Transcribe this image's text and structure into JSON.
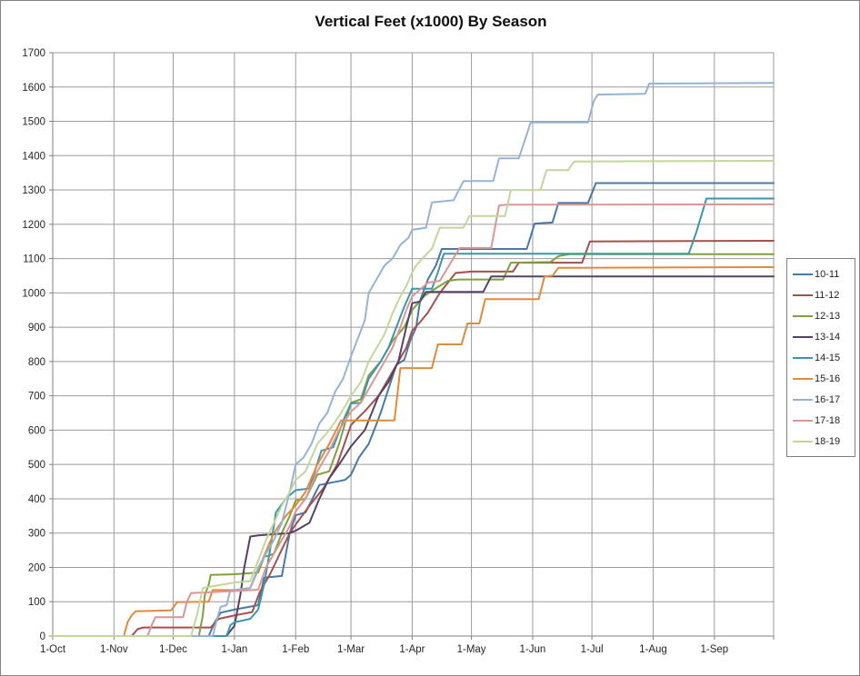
{
  "chart_data": {
    "type": "line",
    "title": "Vertical Feet (x1000) By Season",
    "xlabel": "",
    "ylabel": "",
    "grid": "both",
    "legend_position": "right",
    "grid_color": "#9b9b9b",
    "axis_color": "#7f7f7f",
    "border_color": "#858585",
    "y_axis": {
      "min": 0,
      "max": 1700,
      "step": 100
    },
    "x_axis": {
      "labels": [
        "1-Oct",
        "1-Nov",
        "1-Dec",
        "1-Jan",
        "1-Feb",
        "1-Mar",
        "1-Apr",
        "1-May",
        "1-Jun",
        "1-Jul",
        "1-Aug",
        "1-Sep"
      ],
      "tick_day_offsets": [
        0,
        31,
        61,
        92,
        123,
        151,
        182,
        212,
        243,
        273,
        304,
        335
      ],
      "total_days": 365
    },
    "series": [
      {
        "name": "10-11",
        "color": "#4878A8",
        "points": [
          [
            0,
            0
          ],
          [
            79,
            0
          ],
          [
            82,
            40
          ],
          [
            85,
            68
          ],
          [
            92,
            77
          ],
          [
            104,
            90
          ],
          [
            107,
            170
          ],
          [
            116,
            175
          ],
          [
            120,
            300
          ],
          [
            123,
            352
          ],
          [
            128,
            360
          ],
          [
            135,
            440
          ],
          [
            148,
            455
          ],
          [
            151,
            470
          ],
          [
            155,
            520
          ],
          [
            160,
            560
          ],
          [
            163,
            604
          ],
          [
            166,
            650
          ],
          [
            170,
            720
          ],
          [
            174,
            790
          ],
          [
            178,
            805
          ],
          [
            181,
            860
          ],
          [
            184,
            900
          ],
          [
            186,
            977
          ],
          [
            190,
            1040
          ],
          [
            194,
            1080
          ],
          [
            197,
            1128
          ],
          [
            240,
            1128
          ],
          [
            244,
            1202
          ],
          [
            253,
            1205
          ],
          [
            256,
            1262
          ],
          [
            271,
            1262
          ],
          [
            275,
            1320
          ],
          [
            365,
            1320
          ]
        ]
      },
      {
        "name": "11-12",
        "color": "#A4504C",
        "points": [
          [
            0,
            0
          ],
          [
            40,
            0
          ],
          [
            43,
            20
          ],
          [
            46,
            25
          ],
          [
            80,
            25
          ],
          [
            84,
            50
          ],
          [
            92,
            60
          ],
          [
            101,
            70
          ],
          [
            105,
            130
          ],
          [
            110,
            180
          ],
          [
            115,
            240
          ],
          [
            120,
            300
          ],
          [
            123,
            325
          ],
          [
            130,
            380
          ],
          [
            137,
            430
          ],
          [
            144,
            500
          ],
          [
            151,
            615
          ],
          [
            158,
            655
          ],
          [
            165,
            700
          ],
          [
            172,
            770
          ],
          [
            179,
            840
          ],
          [
            182,
            890
          ],
          [
            186,
            915
          ],
          [
            190,
            943
          ],
          [
            196,
            1000
          ],
          [
            204,
            1058
          ],
          [
            212,
            1062
          ],
          [
            233,
            1062
          ],
          [
            236,
            1088
          ],
          [
            268,
            1088
          ],
          [
            272,
            1150
          ],
          [
            365,
            1152
          ]
        ]
      },
      {
        "name": "12-13",
        "color": "#7FA03F",
        "points": [
          [
            0,
            0
          ],
          [
            74,
            0
          ],
          [
            76,
            60
          ],
          [
            77,
            120
          ],
          [
            79,
            150
          ],
          [
            80,
            178
          ],
          [
            92,
            180
          ],
          [
            104,
            185
          ],
          [
            107,
            230
          ],
          [
            112,
            240
          ],
          [
            116,
            300
          ],
          [
            120,
            350
          ],
          [
            123,
            395
          ],
          [
            128,
            400
          ],
          [
            134,
            470
          ],
          [
            140,
            480
          ],
          [
            145,
            560
          ],
          [
            151,
            680
          ],
          [
            156,
            690
          ],
          [
            160,
            760
          ],
          [
            166,
            800
          ],
          [
            172,
            860
          ],
          [
            178,
            900
          ],
          [
            182,
            950
          ],
          [
            188,
            990
          ],
          [
            193,
            1010
          ],
          [
            200,
            1035
          ],
          [
            205,
            1039
          ],
          [
            228,
            1039
          ],
          [
            232,
            1088
          ],
          [
            252,
            1090
          ],
          [
            256,
            1107
          ],
          [
            262,
            1113
          ],
          [
            365,
            1113
          ]
        ]
      },
      {
        "name": "13-14",
        "color": "#564266",
        "points": [
          [
            0,
            0
          ],
          [
            88,
            0
          ],
          [
            90,
            15
          ],
          [
            92,
            30
          ],
          [
            95,
            120
          ],
          [
            97,
            200
          ],
          [
            100,
            290
          ],
          [
            104,
            293
          ],
          [
            120,
            300
          ],
          [
            123,
            307
          ],
          [
            130,
            330
          ],
          [
            135,
            400
          ],
          [
            140,
            460
          ],
          [
            145,
            500
          ],
          [
            151,
            553
          ],
          [
            158,
            600
          ],
          [
            165,
            700
          ],
          [
            170,
            740
          ],
          [
            175,
            800
          ],
          [
            179,
            900
          ],
          [
            182,
            970
          ],
          [
            186,
            975
          ],
          [
            189,
            1003
          ],
          [
            218,
            1003
          ],
          [
            222,
            1048
          ],
          [
            365,
            1048
          ]
        ]
      },
      {
        "name": "14-15",
        "color": "#3D95AB",
        "points": [
          [
            0,
            0
          ],
          [
            88,
            0
          ],
          [
            90,
            32
          ],
          [
            92,
            40
          ],
          [
            100,
            50
          ],
          [
            104,
            77
          ],
          [
            107,
            150
          ],
          [
            110,
            250
          ],
          [
            113,
            360
          ],
          [
            118,
            400
          ],
          [
            123,
            425
          ],
          [
            130,
            430
          ],
          [
            136,
            540
          ],
          [
            142,
            550
          ],
          [
            148,
            640
          ],
          [
            151,
            678
          ],
          [
            156,
            680
          ],
          [
            160,
            750
          ],
          [
            166,
            800
          ],
          [
            170,
            840
          ],
          [
            174,
            900
          ],
          [
            178,
            960
          ],
          [
            182,
            1012
          ],
          [
            192,
            1012
          ],
          [
            195,
            1060
          ],
          [
            198,
            1114
          ],
          [
            322,
            1114
          ],
          [
            326,
            1180
          ],
          [
            331,
            1275
          ],
          [
            365,
            1275
          ]
        ]
      },
      {
        "name": "15-16",
        "color": "#E08A3C",
        "points": [
          [
            0,
            0
          ],
          [
            36,
            0
          ],
          [
            38,
            42
          ],
          [
            40,
            60
          ],
          [
            42,
            72
          ],
          [
            60,
            75
          ],
          [
            63,
            99
          ],
          [
            79,
            100
          ],
          [
            81,
            134
          ],
          [
            92,
            134
          ],
          [
            100,
            140
          ],
          [
            106,
            220
          ],
          [
            112,
            300
          ],
          [
            118,
            350
          ],
          [
            123,
            381
          ],
          [
            128,
            420
          ],
          [
            134,
            500
          ],
          [
            140,
            560
          ],
          [
            146,
            628
          ],
          [
            173,
            628
          ],
          [
            176,
            781
          ],
          [
            192,
            781
          ],
          [
            195,
            850
          ],
          [
            207,
            850
          ],
          [
            210,
            911
          ],
          [
            216,
            911
          ],
          [
            219,
            982
          ],
          [
            246,
            982
          ],
          [
            249,
            1048
          ],
          [
            253,
            1050
          ],
          [
            256,
            1073
          ],
          [
            365,
            1075
          ]
        ]
      },
      {
        "name": "16-17",
        "color": "#95B3D7",
        "points": [
          [
            0,
            0
          ],
          [
            81,
            0
          ],
          [
            83,
            45
          ],
          [
            85,
            85
          ],
          [
            88,
            90
          ],
          [
            90,
            134
          ],
          [
            92,
            134
          ],
          [
            100,
            140
          ],
          [
            104,
            200
          ],
          [
            108,
            240
          ],
          [
            112,
            280
          ],
          [
            116,
            330
          ],
          [
            120,
            420
          ],
          [
            123,
            500
          ],
          [
            127,
            520
          ],
          [
            131,
            560
          ],
          [
            135,
            620
          ],
          [
            139,
            650
          ],
          [
            143,
            712
          ],
          [
            147,
            750
          ],
          [
            151,
            815
          ],
          [
            154,
            860
          ],
          [
            158,
            920
          ],
          [
            160,
            1000
          ],
          [
            164,
            1040
          ],
          [
            168,
            1080
          ],
          [
            172,
            1100
          ],
          [
            176,
            1140
          ],
          [
            180,
            1160
          ],
          [
            182,
            1184
          ],
          [
            189,
            1190
          ],
          [
            192,
            1264
          ],
          [
            203,
            1270
          ],
          [
            208,
            1326
          ],
          [
            223,
            1326
          ],
          [
            226,
            1392
          ],
          [
            236,
            1392
          ],
          [
            242,
            1497
          ],
          [
            271,
            1497
          ],
          [
            274,
            1560
          ],
          [
            276,
            1578
          ],
          [
            300,
            1580
          ],
          [
            302,
            1610
          ],
          [
            365,
            1612
          ]
        ]
      },
      {
        "name": "17-18",
        "color": "#D99694",
        "points": [
          [
            0,
            0
          ],
          [
            48,
            0
          ],
          [
            50,
            30
          ],
          [
            52,
            55
          ],
          [
            66,
            55
          ],
          [
            68,
            100
          ],
          [
            70,
            125
          ],
          [
            92,
            131
          ],
          [
            104,
            135
          ],
          [
            108,
            200
          ],
          [
            112,
            240
          ],
          [
            116,
            280
          ],
          [
            120,
            320
          ],
          [
            123,
            363
          ],
          [
            128,
            400
          ],
          [
            134,
            480
          ],
          [
            140,
            540
          ],
          [
            145,
            600
          ],
          [
            151,
            654
          ],
          [
            156,
            680
          ],
          [
            160,
            720
          ],
          [
            164,
            760
          ],
          [
            168,
            800
          ],
          [
            172,
            840
          ],
          [
            176,
            900
          ],
          [
            179,
            950
          ],
          [
            182,
            990
          ],
          [
            186,
            1010
          ],
          [
            190,
            1030
          ],
          [
            196,
            1035
          ],
          [
            206,
            1131
          ],
          [
            222,
            1131
          ],
          [
            226,
            1255
          ],
          [
            230,
            1257
          ],
          [
            365,
            1258
          ]
        ]
      },
      {
        "name": "18-19",
        "color": "#C3D69B",
        "points": [
          [
            0,
            0
          ],
          [
            70,
            0
          ],
          [
            73,
            60
          ],
          [
            76,
            140
          ],
          [
            92,
            156
          ],
          [
            100,
            160
          ],
          [
            104,
            220
          ],
          [
            108,
            280
          ],
          [
            112,
            330
          ],
          [
            116,
            380
          ],
          [
            120,
            420
          ],
          [
            123,
            455
          ],
          [
            128,
            480
          ],
          [
            134,
            560
          ],
          [
            140,
            600
          ],
          [
            146,
            650
          ],
          [
            151,
            700
          ],
          [
            156,
            740
          ],
          [
            160,
            800
          ],
          [
            164,
            840
          ],
          [
            168,
            880
          ],
          [
            172,
            940
          ],
          [
            176,
            990
          ],
          [
            179,
            1020
          ],
          [
            182,
            1060
          ],
          [
            184,
            1080
          ],
          [
            188,
            1105
          ],
          [
            192,
            1129
          ],
          [
            196,
            1190
          ],
          [
            208,
            1190
          ],
          [
            211,
            1224
          ],
          [
            229,
            1224
          ],
          [
            232,
            1300
          ],
          [
            247,
            1300
          ],
          [
            250,
            1358
          ],
          [
            261,
            1358
          ],
          [
            264,
            1383
          ],
          [
            365,
            1385
          ]
        ]
      }
    ]
  }
}
